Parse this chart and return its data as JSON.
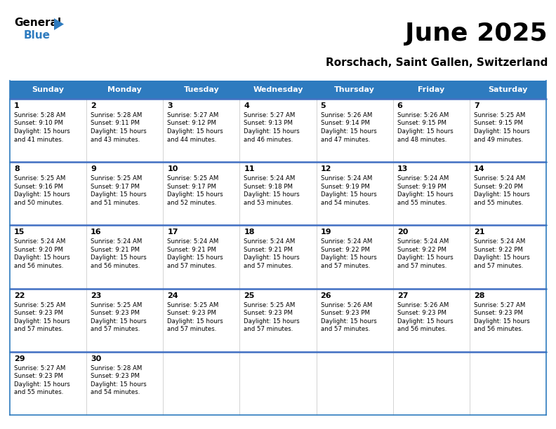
{
  "title": "June 2025",
  "subtitle": "Rorschach, Saint Gallen, Switzerland",
  "header_bg": "#2E7BBF",
  "header_text": "#FFFFFF",
  "cell_bg": "#FFFFFF",
  "border_color": "#2E7BBF",
  "row_border_color": "#4472C4",
  "col_border_color": "#CCCCCC",
  "text_color": "#000000",
  "days_of_week": [
    "Sunday",
    "Monday",
    "Tuesday",
    "Wednesday",
    "Thursday",
    "Friday",
    "Saturday"
  ],
  "calendar": [
    [
      {
        "day": 1,
        "sunrise": "5:28 AM",
        "sunset": "9:10 PM",
        "daylight": "15 hours and 41 minutes."
      },
      {
        "day": 2,
        "sunrise": "5:28 AM",
        "sunset": "9:11 PM",
        "daylight": "15 hours and 43 minutes."
      },
      {
        "day": 3,
        "sunrise": "5:27 AM",
        "sunset": "9:12 PM",
        "daylight": "15 hours and 44 minutes."
      },
      {
        "day": 4,
        "sunrise": "5:27 AM",
        "sunset": "9:13 PM",
        "daylight": "15 hours and 46 minutes."
      },
      {
        "day": 5,
        "sunrise": "5:26 AM",
        "sunset": "9:14 PM",
        "daylight": "15 hours and 47 minutes."
      },
      {
        "day": 6,
        "sunrise": "5:26 AM",
        "sunset": "9:15 PM",
        "daylight": "15 hours and 48 minutes."
      },
      {
        "day": 7,
        "sunrise": "5:25 AM",
        "sunset": "9:15 PM",
        "daylight": "15 hours and 49 minutes."
      }
    ],
    [
      {
        "day": 8,
        "sunrise": "5:25 AM",
        "sunset": "9:16 PM",
        "daylight": "15 hours and 50 minutes."
      },
      {
        "day": 9,
        "sunrise": "5:25 AM",
        "sunset": "9:17 PM",
        "daylight": "15 hours and 51 minutes."
      },
      {
        "day": 10,
        "sunrise": "5:25 AM",
        "sunset": "9:17 PM",
        "daylight": "15 hours and 52 minutes."
      },
      {
        "day": 11,
        "sunrise": "5:24 AM",
        "sunset": "9:18 PM",
        "daylight": "15 hours and 53 minutes."
      },
      {
        "day": 12,
        "sunrise": "5:24 AM",
        "sunset": "9:19 PM",
        "daylight": "15 hours and 54 minutes."
      },
      {
        "day": 13,
        "sunrise": "5:24 AM",
        "sunset": "9:19 PM",
        "daylight": "15 hours and 55 minutes."
      },
      {
        "day": 14,
        "sunrise": "5:24 AM",
        "sunset": "9:20 PM",
        "daylight": "15 hours and 55 minutes."
      }
    ],
    [
      {
        "day": 15,
        "sunrise": "5:24 AM",
        "sunset": "9:20 PM",
        "daylight": "15 hours and 56 minutes."
      },
      {
        "day": 16,
        "sunrise": "5:24 AM",
        "sunset": "9:21 PM",
        "daylight": "15 hours and 56 minutes."
      },
      {
        "day": 17,
        "sunrise": "5:24 AM",
        "sunset": "9:21 PM",
        "daylight": "15 hours and 57 minutes."
      },
      {
        "day": 18,
        "sunrise": "5:24 AM",
        "sunset": "9:21 PM",
        "daylight": "15 hours and 57 minutes."
      },
      {
        "day": 19,
        "sunrise": "5:24 AM",
        "sunset": "9:22 PM",
        "daylight": "15 hours and 57 minutes."
      },
      {
        "day": 20,
        "sunrise": "5:24 AM",
        "sunset": "9:22 PM",
        "daylight": "15 hours and 57 minutes."
      },
      {
        "day": 21,
        "sunrise": "5:24 AM",
        "sunset": "9:22 PM",
        "daylight": "15 hours and 57 minutes."
      }
    ],
    [
      {
        "day": 22,
        "sunrise": "5:25 AM",
        "sunset": "9:23 PM",
        "daylight": "15 hours and 57 minutes."
      },
      {
        "day": 23,
        "sunrise": "5:25 AM",
        "sunset": "9:23 PM",
        "daylight": "15 hours and 57 minutes."
      },
      {
        "day": 24,
        "sunrise": "5:25 AM",
        "sunset": "9:23 PM",
        "daylight": "15 hours and 57 minutes."
      },
      {
        "day": 25,
        "sunrise": "5:25 AM",
        "sunset": "9:23 PM",
        "daylight": "15 hours and 57 minutes."
      },
      {
        "day": 26,
        "sunrise": "5:26 AM",
        "sunset": "9:23 PM",
        "daylight": "15 hours and 57 minutes."
      },
      {
        "day": 27,
        "sunrise": "5:26 AM",
        "sunset": "9:23 PM",
        "daylight": "15 hours and 56 minutes."
      },
      {
        "day": 28,
        "sunrise": "5:27 AM",
        "sunset": "9:23 PM",
        "daylight": "15 hours and 56 minutes."
      }
    ],
    [
      {
        "day": 29,
        "sunrise": "5:27 AM",
        "sunset": "9:23 PM",
        "daylight": "15 hours and 55 minutes."
      },
      {
        "day": 30,
        "sunrise": "5:28 AM",
        "sunset": "9:23 PM",
        "daylight": "15 hours and 54 minutes."
      },
      null,
      null,
      null,
      null,
      null
    ]
  ]
}
